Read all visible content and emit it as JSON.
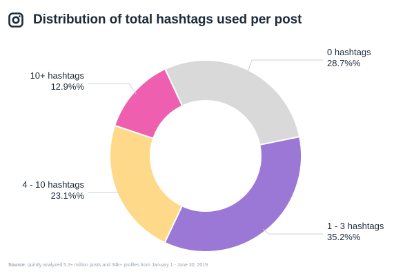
{
  "header": {
    "title": "Distribution of total hashtags used per post",
    "icon": "instagram-icon"
  },
  "chart_data": {
    "type": "pie",
    "title": "Distribution of total hashtags used per post",
    "donut": true,
    "categories": [
      "0 hashtags",
      "1 - 3 hashtags",
      "4 - 10 hashtags",
      "10+ hashtags"
    ],
    "values": [
      28.7,
      35.2,
      23.1,
      12.9
    ],
    "value_labels": [
      "28.7%%",
      "35.2%%",
      "23.1%%",
      "12.9%%"
    ],
    "colors": [
      "#d9d9d9",
      "#9b78d6",
      "#ffd98a",
      "#ef5fb0"
    ],
    "legend": "none"
  },
  "footer": {
    "source_label": "Source:",
    "source_text": "quintly analyzed 5.3+ million posts and 34k+ profiles from January 1 - June 30, 2019"
  }
}
